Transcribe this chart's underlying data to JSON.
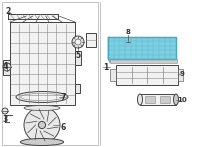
{
  "bg_color": "#ffffff",
  "highlight_color": "#7ecfe0",
  "highlight_edge": "#4aa8c0",
  "line_color": "#444444",
  "light_gray": "#aaaaaa",
  "mid_gray": "#888888",
  "fill_gray": "#e8e8e8",
  "fill_light": "#f2f2f2",
  "fill_dark": "#cccccc",
  "figsize": [
    2.0,
    1.47
  ],
  "dpi": 100
}
